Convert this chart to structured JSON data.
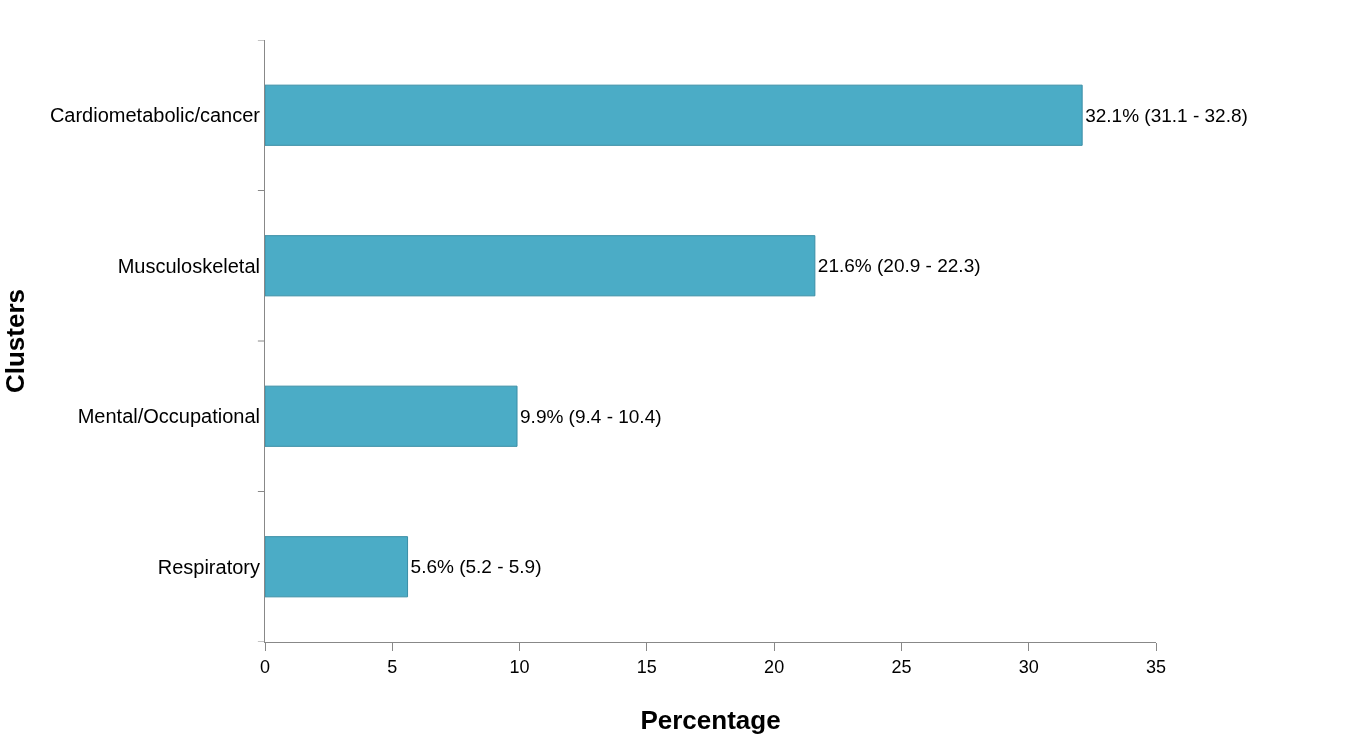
{
  "chart_data": {
    "type": "bar",
    "orientation": "horizontal",
    "categories": [
      "Cardiometabolic/cancer",
      "Musculoskeletal",
      "Mental/Occupational",
      "Respiratory"
    ],
    "values": [
      32.1,
      21.6,
      9.9,
      5.6
    ],
    "value_labels": [
      "32.1% (31.1 - 32.8)",
      "21.6% (20.9 - 22.3)",
      "9.9% (9.4 - 10.4)",
      "5.6% (5.2 - 5.9)"
    ],
    "color": "#4bacc6",
    "xlim": [
      0,
      35
    ],
    "xticks": [
      0,
      5,
      10,
      15,
      20,
      25,
      30,
      35
    ],
    "xlabel": "Percentage",
    "ylabel": "Clusters"
  }
}
